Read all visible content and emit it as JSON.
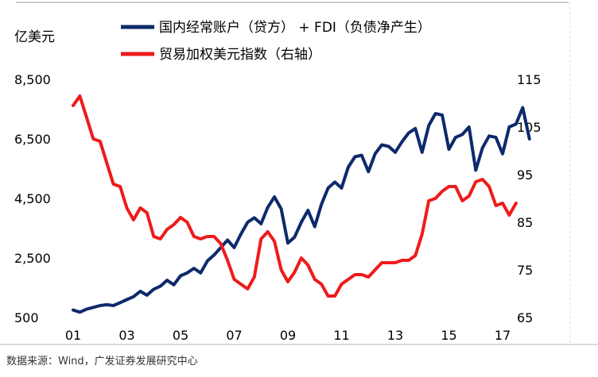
{
  "chart_data": {
    "type": "line",
    "left_axis": {
      "unit": "亿美元",
      "range": [
        500,
        8500
      ],
      "ticks": [
        "8,500",
        "6,500",
        "4,500",
        "2,500",
        "500"
      ],
      "tick_values": [
        8500,
        6500,
        4500,
        2500,
        500
      ]
    },
    "right_axis": {
      "unit": "",
      "range": [
        65,
        115
      ],
      "ticks": [
        "115",
        "105",
        "95",
        "85",
        "75",
        "65"
      ],
      "tick_values": [
        115,
        105,
        95,
        85,
        75,
        65
      ]
    },
    "x_axis": {
      "range": [
        2001,
        2017.5
      ],
      "tick_labels": [
        "01",
        "03",
        "05",
        "07",
        "09",
        "11",
        "13",
        "15",
        "17"
      ],
      "tick_values": [
        2001,
        2003,
        2005,
        2007,
        2009,
        2011,
        2013,
        2015,
        2017
      ]
    },
    "series": [
      {
        "name": "国内经常账户（贷方） + FDI（负债净产生）",
        "color": "#0d2a6b",
        "axis": "left",
        "points": [
          [
            2001.0,
            750
          ],
          [
            2001.25,
            680
          ],
          [
            2001.5,
            780
          ],
          [
            2001.75,
            840
          ],
          [
            2002.0,
            900
          ],
          [
            2002.25,
            930
          ],
          [
            2002.5,
            900
          ],
          [
            2002.75,
            1000
          ],
          [
            2003.0,
            1100
          ],
          [
            2003.25,
            1200
          ],
          [
            2003.5,
            1380
          ],
          [
            2003.75,
            1250
          ],
          [
            2004.0,
            1450
          ],
          [
            2004.25,
            1550
          ],
          [
            2004.5,
            1750
          ],
          [
            2004.75,
            1600
          ],
          [
            2005.0,
            1900
          ],
          [
            2005.25,
            2000
          ],
          [
            2005.5,
            2150
          ],
          [
            2005.75,
            2000
          ],
          [
            2006.0,
            2400
          ],
          [
            2006.25,
            2600
          ],
          [
            2006.5,
            2850
          ],
          [
            2006.75,
            3100
          ],
          [
            2007.0,
            2850
          ],
          [
            2007.25,
            3300
          ],
          [
            2007.5,
            3700
          ],
          [
            2007.75,
            3850
          ],
          [
            2008.0,
            3650
          ],
          [
            2008.25,
            4200
          ],
          [
            2008.5,
            4550
          ],
          [
            2008.75,
            4150
          ],
          [
            2009.0,
            3000
          ],
          [
            2009.25,
            3200
          ],
          [
            2009.5,
            3700
          ],
          [
            2009.75,
            4100
          ],
          [
            2010.0,
            3550
          ],
          [
            2010.25,
            4300
          ],
          [
            2010.5,
            4850
          ],
          [
            2010.75,
            5050
          ],
          [
            2011.0,
            4850
          ],
          [
            2011.25,
            5550
          ],
          [
            2011.5,
            5900
          ],
          [
            2011.75,
            5950
          ],
          [
            2012.0,
            5400
          ],
          [
            2012.25,
            6000
          ],
          [
            2012.5,
            6300
          ],
          [
            2012.75,
            6250
          ],
          [
            2013.0,
            6050
          ],
          [
            2013.25,
            6400
          ],
          [
            2013.5,
            6700
          ],
          [
            2013.75,
            6850
          ],
          [
            2014.0,
            6050
          ],
          [
            2014.25,
            6950
          ],
          [
            2014.5,
            7350
          ],
          [
            2014.75,
            7300
          ],
          [
            2015.0,
            6150
          ],
          [
            2015.25,
            6550
          ],
          [
            2015.5,
            6650
          ],
          [
            2015.75,
            6900
          ],
          [
            2016.0,
            5450
          ],
          [
            2016.25,
            6200
          ],
          [
            2016.5,
            6600
          ],
          [
            2016.75,
            6550
          ],
          [
            2017.0,
            6000
          ],
          [
            2017.25,
            6900
          ],
          [
            2017.5,
            7000
          ],
          [
            2017.75,
            7550
          ],
          [
            2018.0,
            6500
          ]
        ]
      },
      {
        "name": "贸易加权美元指数（右轴）",
        "color": "#ee1b1b",
        "axis": "right",
        "points": [
          [
            2001.0,
            109.5
          ],
          [
            2001.25,
            111.5
          ],
          [
            2001.5,
            107.0
          ],
          [
            2001.75,
            102.5
          ],
          [
            2002.0,
            102.0
          ],
          [
            2002.25,
            97.5
          ],
          [
            2002.5,
            93.0
          ],
          [
            2002.75,
            92.5
          ],
          [
            2003.0,
            88.0
          ],
          [
            2003.25,
            85.5
          ],
          [
            2003.5,
            88.0
          ],
          [
            2003.75,
            87.0
          ],
          [
            2004.0,
            82.0
          ],
          [
            2004.25,
            81.5
          ],
          [
            2004.5,
            83.5
          ],
          [
            2004.75,
            84.5
          ],
          [
            2005.0,
            86.0
          ],
          [
            2005.25,
            85.0
          ],
          [
            2005.5,
            82.0
          ],
          [
            2005.75,
            81.5
          ],
          [
            2006.0,
            82.0
          ],
          [
            2006.25,
            82.0
          ],
          [
            2006.5,
            80.5
          ],
          [
            2006.75,
            77.0
          ],
          [
            2007.0,
            73.0
          ],
          [
            2007.25,
            72.0
          ],
          [
            2007.5,
            71.0
          ],
          [
            2007.75,
            73.5
          ],
          [
            2008.0,
            81.5
          ],
          [
            2008.25,
            83.0
          ],
          [
            2008.5,
            81.0
          ],
          [
            2008.75,
            75.0
          ],
          [
            2009.0,
            72.5
          ],
          [
            2009.25,
            74.5
          ],
          [
            2009.5,
            77.5
          ],
          [
            2009.75,
            76.0
          ],
          [
            2010.0,
            73.0
          ],
          [
            2010.25,
            72.0
          ],
          [
            2010.5,
            69.5
          ],
          [
            2010.75,
            69.5
          ],
          [
            2011.0,
            72.0
          ],
          [
            2011.25,
            73.0
          ],
          [
            2011.5,
            74.0
          ],
          [
            2011.75,
            74.0
          ],
          [
            2012.0,
            73.5
          ],
          [
            2012.25,
            75.0
          ],
          [
            2012.5,
            76.5
          ],
          [
            2012.75,
            76.5
          ],
          [
            2013.0,
            76.5
          ],
          [
            2013.25,
            77.0
          ],
          [
            2013.5,
            77.0
          ],
          [
            2013.75,
            78.0
          ],
          [
            2014.0,
            82.5
          ],
          [
            2014.25,
            89.5
          ],
          [
            2014.5,
            90.0
          ],
          [
            2014.75,
            91.5
          ],
          [
            2015.0,
            92.5
          ],
          [
            2015.25,
            92.5
          ],
          [
            2015.5,
            89.5
          ],
          [
            2015.75,
            90.5
          ],
          [
            2016.0,
            93.5
          ],
          [
            2016.25,
            94.0
          ],
          [
            2016.5,
            92.5
          ],
          [
            2016.75,
            88.5
          ],
          [
            2017.0,
            89.0
          ],
          [
            2017.25,
            86.5
          ],
          [
            2017.5,
            89.0
          ]
        ]
      }
    ],
    "source": "数据来源：Wind，广发证券发展研究中心"
  }
}
